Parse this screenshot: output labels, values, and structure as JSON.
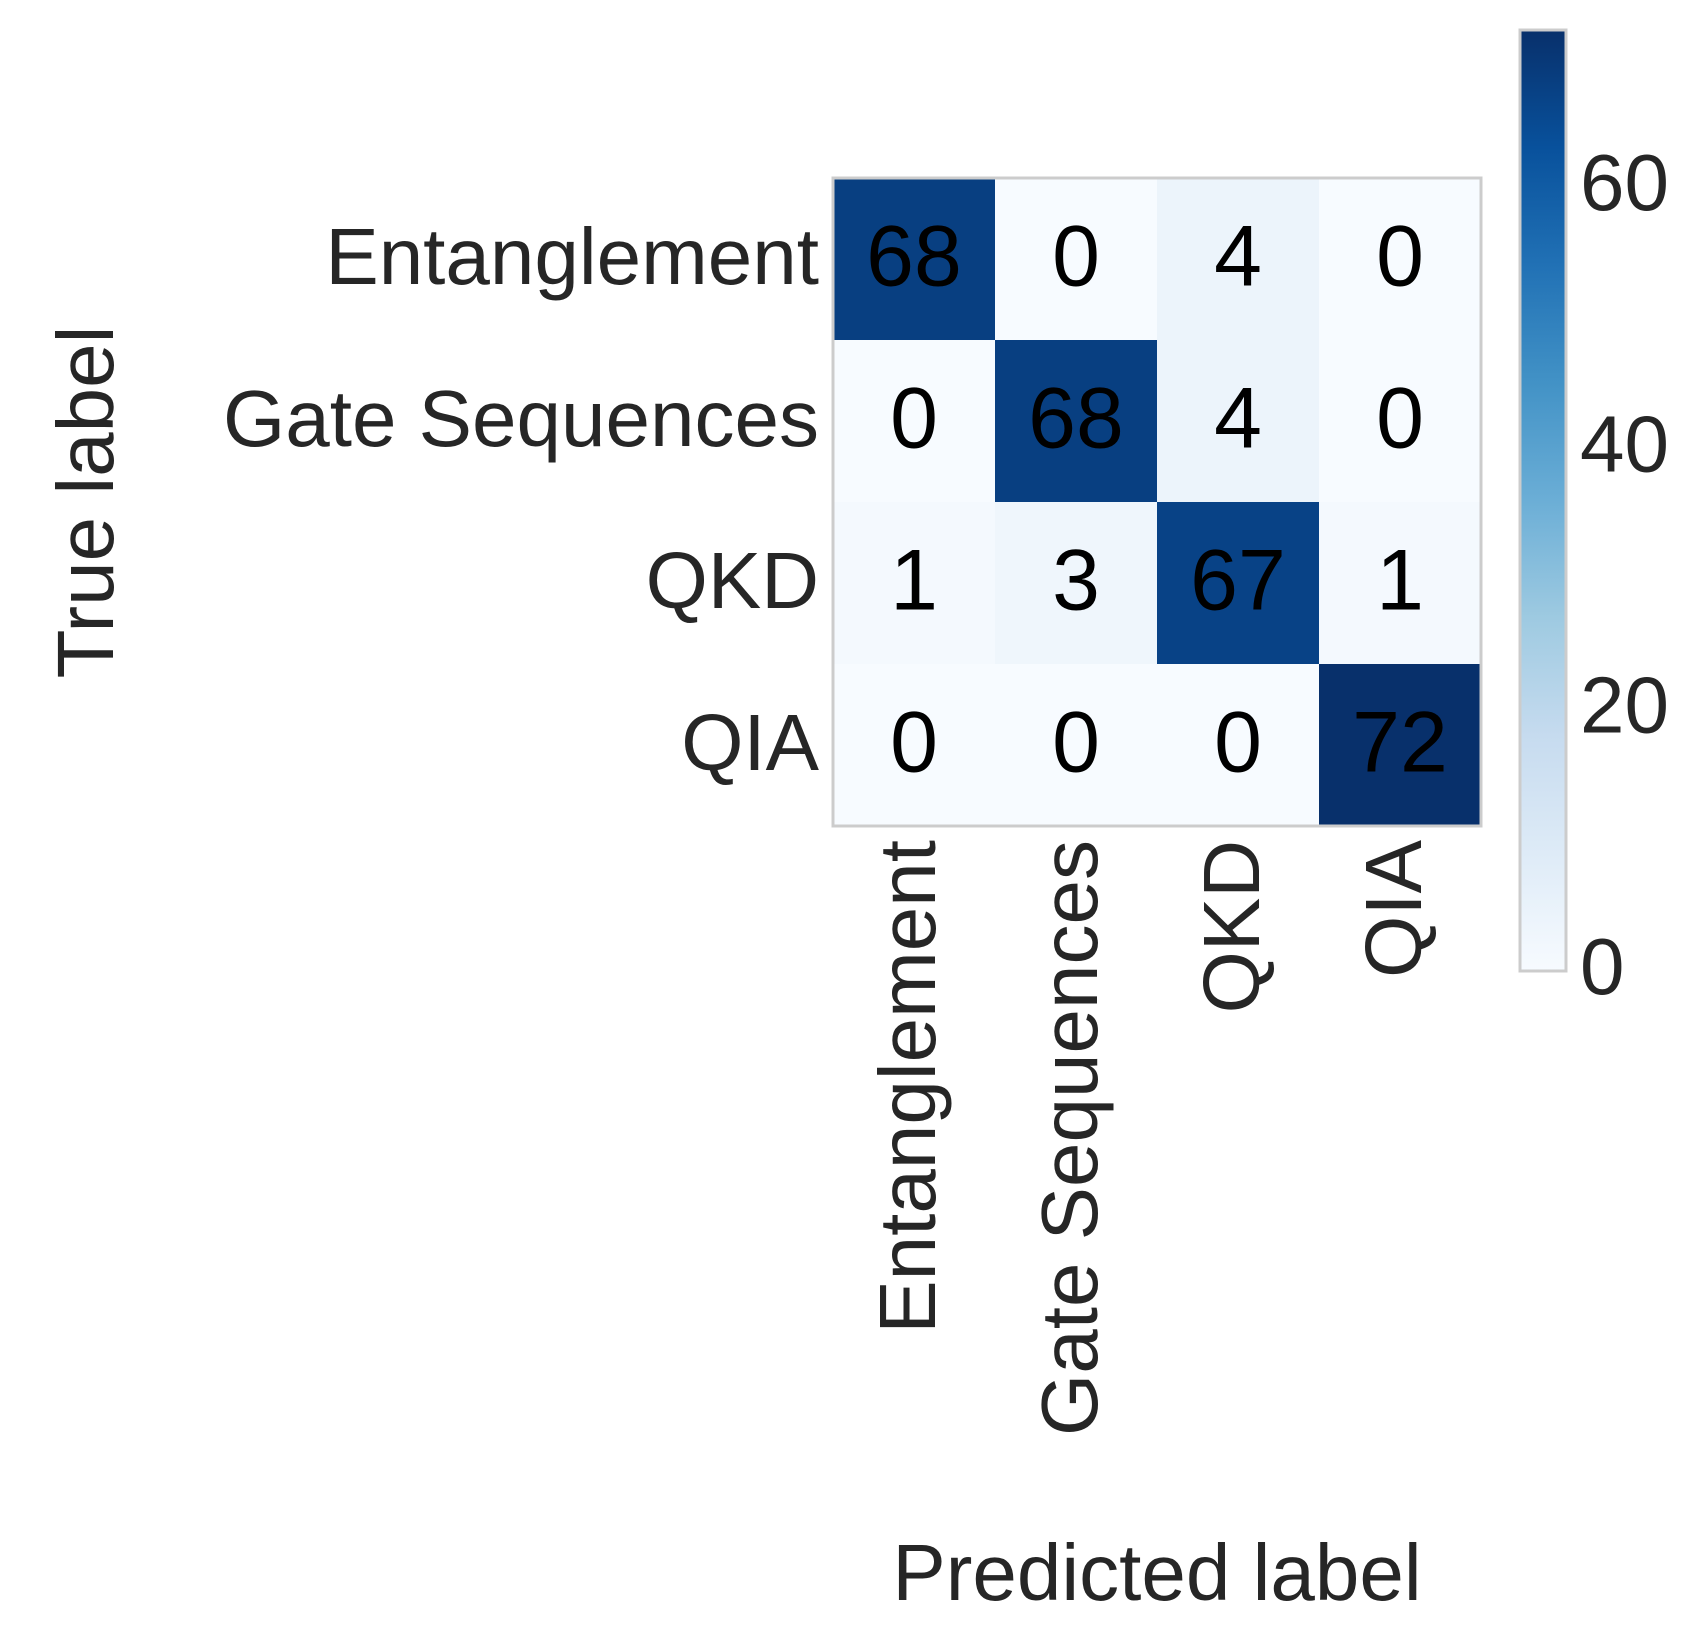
{
  "chart_data": {
    "type": "heatmap",
    "title": "",
    "xlabel": "Predicted label",
    "ylabel": "True label",
    "x_categories": [
      "Entanglement",
      "Gate Sequences",
      "QKD",
      "QIA"
    ],
    "y_categories": [
      "Entanglement",
      "Gate Sequences",
      "QKD",
      "QIA"
    ],
    "values": [
      [
        68,
        0,
        4,
        0
      ],
      [
        0,
        68,
        4,
        0
      ],
      [
        1,
        3,
        67,
        1
      ],
      [
        0,
        0,
        0,
        72
      ]
    ],
    "colormap": "Blues",
    "color_range": [
      0,
      72
    ],
    "colorbar": {
      "ticks": [
        0,
        20,
        40,
        60
      ],
      "tick_labels": [
        "0",
        "20",
        "40",
        "60"
      ]
    },
    "colors": {
      "low": "#f7fbff",
      "high": "#08306b",
      "text_dark": "#000000",
      "label": "#262626",
      "frame": "#cccccc"
    },
    "grid": false
  }
}
